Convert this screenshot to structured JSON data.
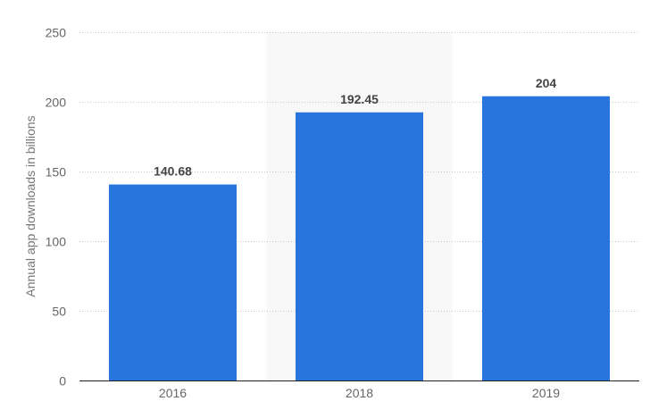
{
  "chart_data": {
    "type": "bar",
    "title": "",
    "xlabel": "",
    "ylabel": "Annual app downloads in billions",
    "categories": [
      "2016",
      "2018",
      "2019"
    ],
    "values": [
      140.68,
      192.45,
      204
    ],
    "data_labels": [
      "140.68",
      "192.45",
      "204"
    ],
    "ylim": [
      0,
      250
    ],
    "yticks": [
      0,
      50,
      100,
      150,
      200,
      250
    ],
    "grid": true,
    "highlighted_category": "2018",
    "colors": {
      "bar": "#2876dd",
      "highlight": "#f8f8f8",
      "grid": "#c8c8c8",
      "axis": "#222222",
      "tick_text": "#666666",
      "label_text": "#444444"
    }
  }
}
